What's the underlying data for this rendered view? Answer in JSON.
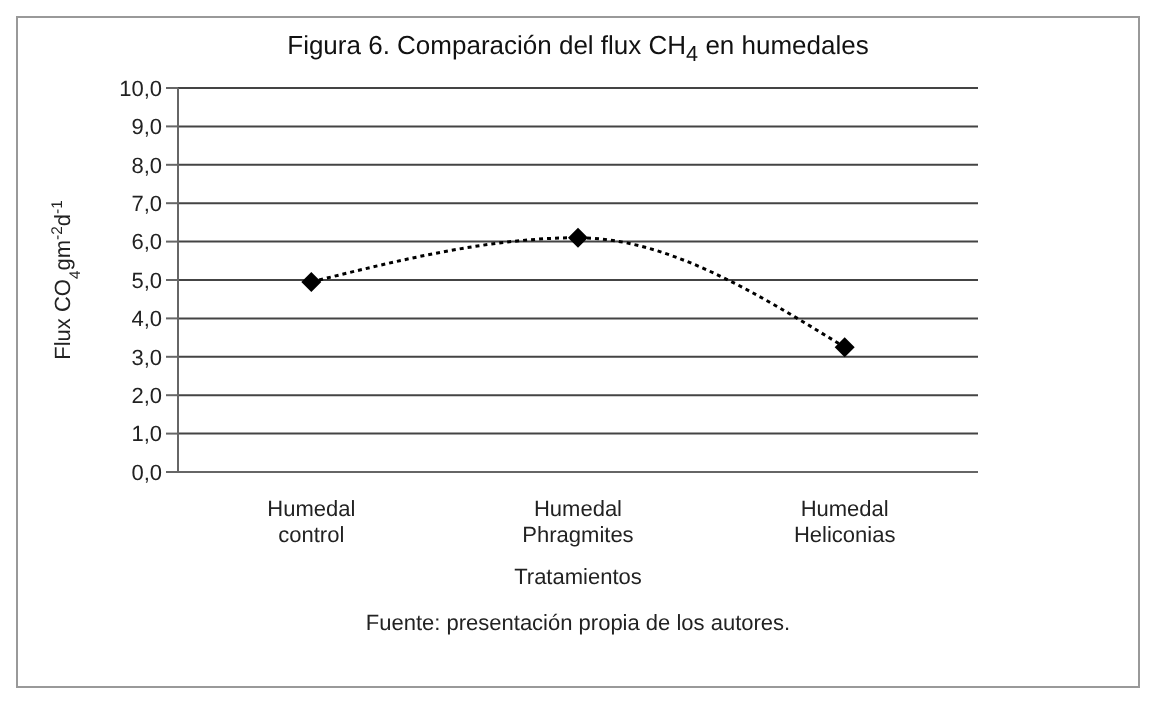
{
  "chart_data": {
    "type": "line",
    "title": "Figura 6. Comparación del flux CH$_{4}$ en humedales",
    "xlabel": "Tratamientos",
    "ylabel": "Flux CO$_{4}$gm$^{-2}$d$^{-1}$",
    "annotations": [
      "Fuente: presentación propia de los autores."
    ],
    "categories": [
      "Humedal control",
      "Humedal Phragmites",
      "Humedal Heliconias"
    ],
    "series": [
      {
        "color": "#000000",
        "values": [
          4.95,
          6.1,
          3.25
        ]
      }
    ],
    "ylim": [
      0,
      10
    ],
    "yticks": [
      {
        "value": 0,
        "label": "0,0"
      },
      {
        "value": 1,
        "label": "1,0"
      },
      {
        "value": 2,
        "label": "2,0"
      },
      {
        "value": 3,
        "label": "3,0"
      },
      {
        "value": 4,
        "label": "4,0"
      },
      {
        "value": 5,
        "label": "5,0"
      },
      {
        "value": 6,
        "label": "6,0"
      },
      {
        "value": 7,
        "label": "7,0"
      },
      {
        "value": 8,
        "label": "8,0"
      },
      {
        "value": 9,
        "label": "9,0"
      },
      {
        "value": 10,
        "label": "10,0"
      }
    ],
    "grid": "y",
    "marker": "diamond",
    "line_style": "dotted"
  }
}
